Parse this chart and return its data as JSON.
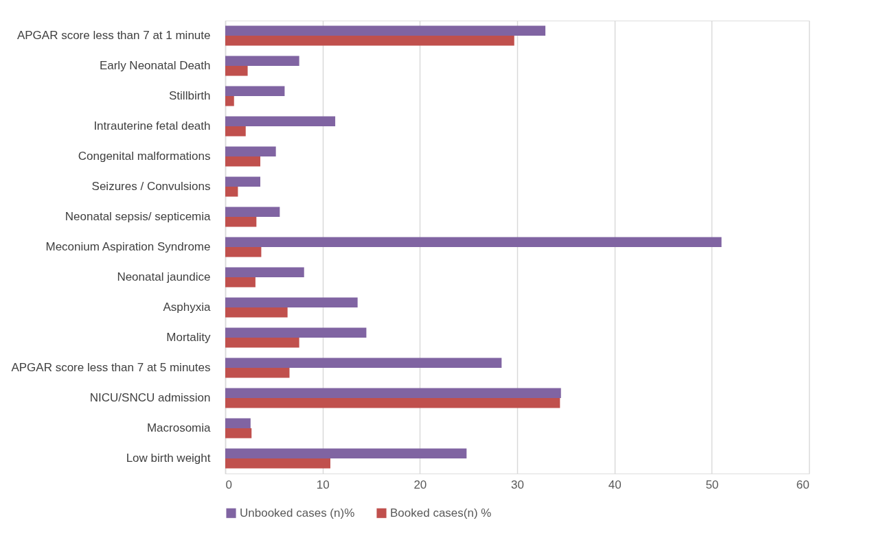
{
  "chart_data": {
    "type": "bar",
    "orientation": "horizontal",
    "categories": [
      "APGAR score less than 7 at 1 minute",
      "Early Neonatal Death",
      "Stillbirth",
      "Intrauterine fetal death",
      "Congenital malformations",
      "Seizures / Convulsions",
      "Neonatal sepsis/ septicemia",
      "Meconium Aspiration Syndrome",
      "Neonatal jaundice",
      "Asphyxia",
      "Mortality",
      "APGAR score less than 7 at 5 minutes",
      "NICU/SNCU admission",
      "Macrosomia",
      "Low birth weight"
    ],
    "series": [
      {
        "name": "Unbooked cases (n)%",
        "color": "#8064a2",
        "values": [
          32.9,
          7.6,
          6.1,
          11.3,
          5.2,
          3.6,
          5.6,
          51.0,
          8.1,
          13.6,
          14.5,
          28.4,
          34.5,
          2.6,
          24.8
        ]
      },
      {
        "name": "Booked cases(n) %",
        "color": "#c0504d",
        "values": [
          29.7,
          2.3,
          0.9,
          2.1,
          3.6,
          1.3,
          3.2,
          3.7,
          3.1,
          6.4,
          7.6,
          6.6,
          34.4,
          2.7,
          10.8
        ]
      }
    ],
    "xlim": [
      0,
      60
    ],
    "xticks": [
      0,
      10,
      20,
      30,
      40,
      50,
      60
    ],
    "grid": "x",
    "legend": "bottom"
  }
}
